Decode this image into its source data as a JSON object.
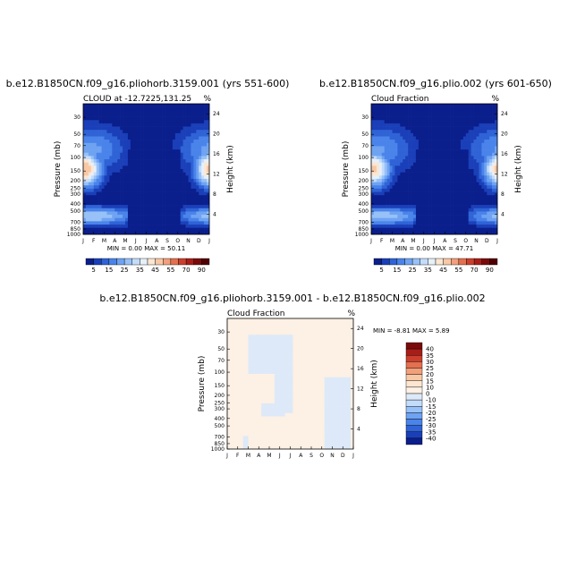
{
  "chart_data": [
    {
      "type": "heatmap",
      "title": "b.e12.B1850CN.f09_g16.pliohorb.3159.001 (yrs 551-600)",
      "subtitle_left": "CLOUD at -12.7225,131.25",
      "subtitle_right": "%",
      "xlabel": "",
      "ylabel": "Pressure (mb)",
      "ylabel_right": "Height (km)",
      "x_ticks": [
        "J",
        "F",
        "M",
        "A",
        "M",
        "J",
        "J",
        "A",
        "S",
        "O",
        "N",
        "D",
        "J"
      ],
      "y_ticks": [
        "30",
        "50",
        "70",
        "100",
        "150",
        "200",
        "250",
        "300",
        "400",
        "500",
        "700",
        "850",
        "1000"
      ],
      "y_ticks_right": [
        "24",
        "20",
        "16",
        "12",
        "8",
        "4"
      ],
      "min_max": "MIN = 0.00 MAX = 50.11",
      "levels": [
        5,
        10,
        15,
        20,
        25,
        30,
        35,
        40,
        45,
        50,
        55,
        60,
        70,
        80,
        90
      ],
      "colorbar_labels": [
        "5",
        "15",
        "25",
        "35",
        "45",
        "55",
        "70",
        "90"
      ],
      "colors": [
        "#0a1e8c",
        "#1a3fb8",
        "#2f63d6",
        "#4a84ea",
        "#6fa3f2",
        "#97c1f7",
        "#c3dcfa",
        "#e6f0fa",
        "#fbe6d2",
        "#f8c8a6",
        "#f1a07b",
        "#e4704f",
        "#cc3f2c",
        "#a81d18",
        "#7a0a0a",
        "#500000"
      ]
    },
    {
      "type": "heatmap",
      "title": "b.e12.B1850CN.f09_g16.plio.002 (yrs 601-650)",
      "subtitle_left": "Cloud Fraction",
      "subtitle_right": "%",
      "xlabel": "",
      "ylabel": "Pressure (mb)",
      "ylabel_right": "Height (km)",
      "x_ticks": [
        "J",
        "F",
        "M",
        "A",
        "M",
        "J",
        "J",
        "A",
        "S",
        "O",
        "N",
        "D",
        "J"
      ],
      "y_ticks": [
        "30",
        "50",
        "70",
        "100",
        "150",
        "200",
        "250",
        "300",
        "400",
        "500",
        "700",
        "850",
        "1000"
      ],
      "y_ticks_right": [
        "24",
        "20",
        "16",
        "12",
        "8",
        "4"
      ],
      "min_max": "MIN = 0.00 MAX = 47.71",
      "levels": [
        5,
        10,
        15,
        20,
        25,
        30,
        35,
        40,
        45,
        50,
        55,
        60,
        70,
        80,
        90
      ],
      "colorbar_labels": [
        "5",
        "15",
        "25",
        "35",
        "45",
        "55",
        "70",
        "90"
      ],
      "colors": [
        "#0a1e8c",
        "#1a3fb8",
        "#2f63d6",
        "#4a84ea",
        "#6fa3f2",
        "#97c1f7",
        "#c3dcfa",
        "#e6f0fa",
        "#fbe6d2",
        "#f8c8a6",
        "#f1a07b",
        "#e4704f",
        "#cc3f2c",
        "#a81d18",
        "#7a0a0a",
        "#500000"
      ]
    },
    {
      "type": "heatmap",
      "title": "b.e12.B1850CN.f09_g16.pliohorb.3159.001 - b.e12.B1850CN.f09_g16.plio.002",
      "subtitle_left": "Cloud Fraction",
      "subtitle_right": "%",
      "xlabel": "",
      "ylabel": "Pressure (mb)",
      "ylabel_right": "Height (km)",
      "x_ticks": [
        "J",
        "F",
        "M",
        "A",
        "M",
        "J",
        "J",
        "A",
        "S",
        "O",
        "N",
        "D",
        "J"
      ],
      "y_ticks": [
        "30",
        "50",
        "70",
        "100",
        "150",
        "200",
        "250",
        "300",
        "400",
        "500",
        "700",
        "850",
        "1000"
      ],
      "y_ticks_right": [
        "24",
        "20",
        "16",
        "12",
        "8",
        "4"
      ],
      "min_max": "MIN = -8.81 MAX = 5.89",
      "colorbar_labels": [
        "40",
        "35",
        "30",
        "25",
        "20",
        "15",
        "10",
        "0",
        "-10",
        "-15",
        "-20",
        "-25",
        "-30",
        "-35",
        "-40"
      ],
      "colors": [
        "#7a0a0a",
        "#a81d18",
        "#cc3f2c",
        "#e4704f",
        "#f1a07b",
        "#f8c8a6",
        "#fbe6d2",
        "#fdf0e4",
        "#dde9f8",
        "#c3dcfa",
        "#97c1f7",
        "#6fa3f2",
        "#4a84ea",
        "#2f63d6",
        "#1a3fb8",
        "#0a1e8c"
      ]
    }
  ]
}
